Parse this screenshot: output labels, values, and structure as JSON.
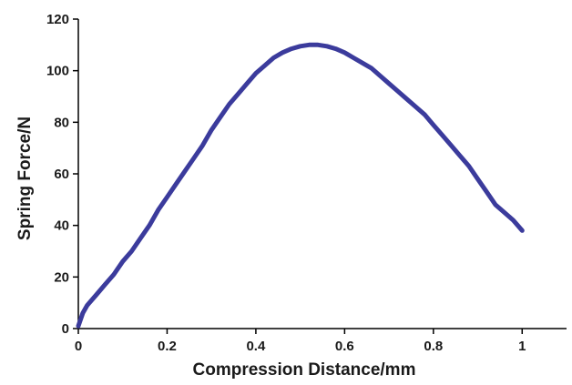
{
  "chart_data": {
    "type": "line",
    "title": "",
    "xlabel": "Compression Distance/mm",
    "ylabel": "Spring Force/N",
    "xlim": [
      0,
      1.1
    ],
    "ylim": [
      0,
      120
    ],
    "x_ticks": [
      0,
      0.2,
      0.4,
      0.6,
      0.8,
      1
    ],
    "x_tick_labels": [
      "0",
      "0.2",
      "0.4",
      "0.6",
      "0.8",
      "1"
    ],
    "y_ticks": [
      0,
      20,
      40,
      60,
      80,
      100,
      120
    ],
    "y_tick_labels": [
      "0",
      "20",
      "40",
      "60",
      "80",
      "100",
      "120"
    ],
    "grid": false,
    "legend": "none",
    "series": [
      {
        "color": "#3b3b9c",
        "x": [
          0,
          0.01,
          0.02,
          0.04,
          0.06,
          0.08,
          0.1,
          0.12,
          0.14,
          0.16,
          0.18,
          0.2,
          0.22,
          0.24,
          0.26,
          0.28,
          0.3,
          0.32,
          0.34,
          0.36,
          0.38,
          0.4,
          0.42,
          0.44,
          0.46,
          0.48,
          0.5,
          0.52,
          0.54,
          0.56,
          0.58,
          0.6,
          0.62,
          0.64,
          0.66,
          0.68,
          0.7,
          0.72,
          0.74,
          0.76,
          0.78,
          0.8,
          0.82,
          0.84,
          0.86,
          0.88,
          0.9,
          0.92,
          0.94,
          0.96,
          0.98,
          1.0
        ],
        "y": [
          1,
          6,
          9,
          13,
          17,
          21,
          26,
          30,
          35,
          40,
          46,
          51,
          56,
          61,
          66,
          71,
          77,
          82,
          87,
          91,
          95,
          99,
          102,
          105,
          107,
          108.5,
          109.5,
          110,
          110,
          109.5,
          108.5,
          107,
          105,
          103,
          101,
          98,
          95,
          92,
          89,
          86,
          83,
          79,
          75,
          71,
          67,
          63,
          58,
          53,
          48,
          45,
          42,
          38
        ]
      }
    ]
  }
}
